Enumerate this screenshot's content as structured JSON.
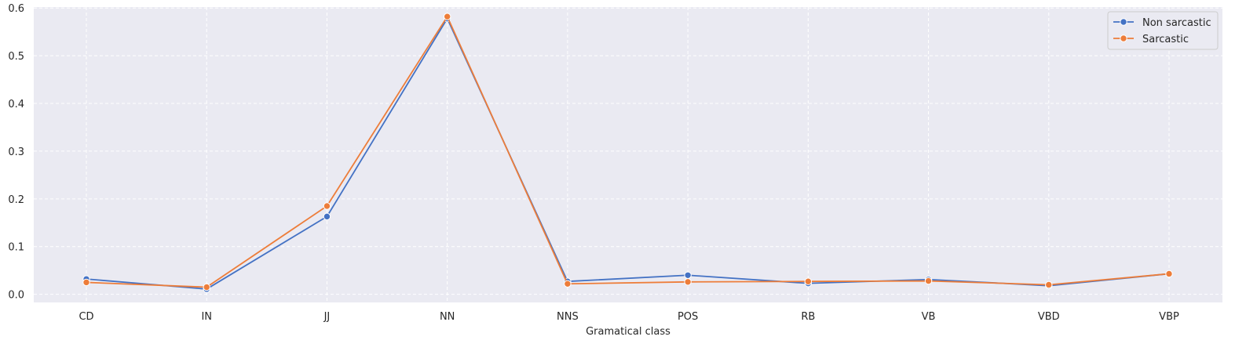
{
  "chart_data": {
    "type": "line",
    "title": "",
    "xlabel": "Gramatical class",
    "ylabel": "",
    "categories": [
      "CD",
      "IN",
      "JJ",
      "NN",
      "NNS",
      "POS",
      "RB",
      "VB",
      "VBD",
      "VBP"
    ],
    "ylim": [
      -0.017,
      0.602
    ],
    "yticks": [
      0.0,
      0.1,
      0.2,
      0.3,
      0.4,
      0.5,
      0.6
    ],
    "ytick_labels": [
      "0.0",
      "0.1",
      "0.2",
      "0.3",
      "0.4",
      "0.5",
      "0.6"
    ],
    "grid": true,
    "legend_position": "top-right",
    "series": [
      {
        "name": "Non sarcastic",
        "color": "#4472c4",
        "values": [
          0.032,
          0.011,
          0.163,
          0.578,
          0.027,
          0.04,
          0.023,
          0.031,
          0.018,
          0.043
        ]
      },
      {
        "name": "Sarcastic",
        "color": "#ed7d3a",
        "values": [
          0.025,
          0.015,
          0.185,
          0.582,
          0.022,
          0.026,
          0.027,
          0.028,
          0.02,
          0.043
        ]
      }
    ]
  }
}
